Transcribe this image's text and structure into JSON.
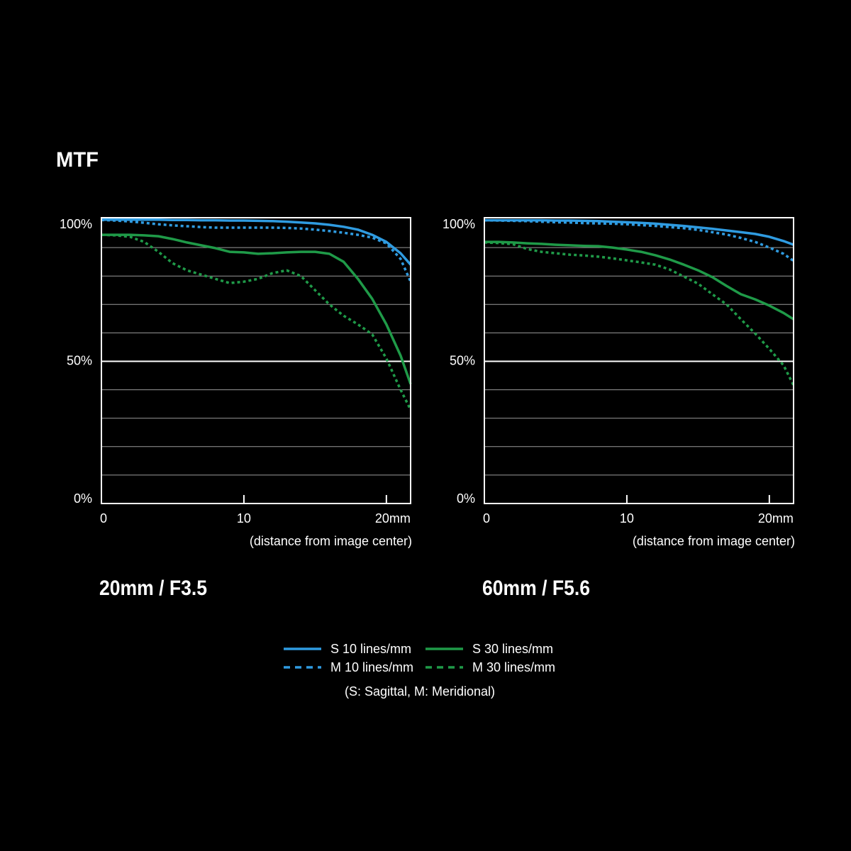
{
  "title": "MTF",
  "note": "(S: Sagittal, M: Meridional)",
  "chart_data": [
    {
      "type": "line",
      "title": "20mm / F3.5",
      "x_label": "(distance from image center)",
      "x": [
        0,
        1,
        2,
        3,
        4,
        5,
        6,
        7,
        8,
        9,
        10,
        11,
        12,
        13,
        14,
        15,
        16,
        17,
        18,
        19,
        20,
        21,
        21.7
      ],
      "xlim": [
        0,
        21.7
      ],
      "xticks": [
        0,
        10,
        {
          "value": 20,
          "label": "20mm"
        }
      ],
      "ylim": [
        0,
        100
      ],
      "yticks": [
        {
          "value": 0,
          "label": "0%"
        },
        {
          "value": 50,
          "label": "50%"
        },
        {
          "value": 100,
          "label": "100%"
        }
      ],
      "ygrid": [
        10,
        20,
        30,
        40,
        50,
        60,
        70,
        80,
        90
      ],
      "series": [
        {
          "name": "S 10 lines/mm",
          "color": "#2f9be0",
          "dashed": false,
          "values": [
            99.8,
            99.8,
            99.8,
            99.8,
            99.8,
            99.7,
            99.7,
            99.6,
            99.6,
            99.5,
            99.5,
            99.4,
            99.3,
            99.1,
            98.8,
            98.5,
            98,
            97.3,
            96.3,
            94.5,
            92,
            88,
            84
          ]
        },
        {
          "name": "M 10 lines/mm",
          "color": "#2f9be0",
          "dashed": true,
          "values": [
            99.7,
            99.5,
            99.2,
            98.7,
            98.2,
            97.8,
            97.5,
            97.2,
            97,
            97,
            97,
            97,
            97,
            96.9,
            96.7,
            96.3,
            95.8,
            95.2,
            94.5,
            93.5,
            91.5,
            86,
            78
          ]
        },
        {
          "name": "S 30 lines/mm",
          "color": "#1f9a48",
          "dashed": false,
          "values": [
            94.5,
            94.5,
            94.5,
            94.3,
            94,
            93,
            91.8,
            90.8,
            89.8,
            88.5,
            88.3,
            87.8,
            88,
            88.3,
            88.5,
            88.5,
            87.8,
            85,
            79,
            72,
            63,
            52,
            42
          ]
        },
        {
          "name": "M 30 lines/mm",
          "color": "#1f9a48",
          "dashed": true,
          "values": [
            94.5,
            94.3,
            93.8,
            92,
            88.5,
            84.5,
            82,
            80.5,
            79,
            77.5,
            78,
            79,
            81,
            82,
            80,
            75,
            70,
            66,
            63,
            59.5,
            51,
            40,
            33
          ]
        }
      ]
    },
    {
      "type": "line",
      "title": "60mm / F5.6",
      "x_label": "(distance from image center)",
      "x": [
        0,
        1,
        2,
        3,
        4,
        5,
        6,
        7,
        8,
        9,
        10,
        11,
        12,
        13,
        14,
        15,
        16,
        17,
        18,
        19,
        20,
        21,
        21.7
      ],
      "xlim": [
        0,
        21.7
      ],
      "xticks": [
        0,
        10,
        {
          "value": 20,
          "label": "20mm"
        }
      ],
      "ylim": [
        0,
        100
      ],
      "yticks": [
        {
          "value": 0,
          "label": "0%"
        },
        {
          "value": 50,
          "label": "50%"
        },
        {
          "value": 100,
          "label": "100%"
        }
      ],
      "ygrid": [
        10,
        20,
        30,
        40,
        50,
        60,
        70,
        80,
        90
      ],
      "series": [
        {
          "color": "#2f9be0",
          "dashed": false,
          "values": [
            99.6,
            99.6,
            99.6,
            99.6,
            99.6,
            99.5,
            99.5,
            99.4,
            99.3,
            99.1,
            98.9,
            98.7,
            98.4,
            98,
            97.6,
            97.1,
            96.6,
            96,
            95.4,
            94.8,
            93.8,
            92.3,
            91
          ]
        },
        {
          "color": "#2f9be0",
          "dashed": true,
          "values": [
            99.6,
            99.5,
            99.4,
            99.3,
            99.1,
            98.9,
            98.8,
            98.6,
            98.5,
            98.4,
            98.2,
            97.9,
            97.6,
            97.2,
            96.8,
            96.2,
            95.4,
            94.6,
            93.4,
            92,
            90,
            87.8,
            85.3
          ]
        },
        {
          "color": "#1f9a48",
          "dashed": false,
          "values": [
            92,
            92,
            91.8,
            91.5,
            91.3,
            91,
            90.8,
            90.6,
            90.5,
            90,
            89.3,
            88.5,
            87.3,
            85.8,
            84,
            82,
            79.6,
            76.5,
            73.6,
            71.8,
            69.6,
            67,
            64.8
          ]
        },
        {
          "color": "#1f9a48",
          "dashed": true,
          "values": [
            91.8,
            91.6,
            91.2,
            89.5,
            88.5,
            88,
            87.5,
            87.2,
            86.8,
            86.2,
            85.5,
            84.8,
            84,
            82.3,
            79.8,
            77.3,
            73.6,
            70,
            64.8,
            59.8,
            54.4,
            48.6,
            41.6
          ]
        }
      ]
    }
  ]
}
